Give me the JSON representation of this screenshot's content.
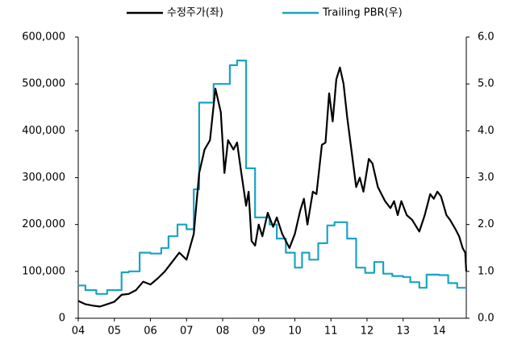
{
  "chart_data": {
    "type": "line",
    "xlim": [
      2004,
      2014.75
    ],
    "xticks": [
      {
        "value": 2004,
        "label": "04"
      },
      {
        "value": 2005,
        "label": "05"
      },
      {
        "value": 2006,
        "label": "06"
      },
      {
        "value": 2007,
        "label": "07"
      },
      {
        "value": 2008,
        "label": "08"
      },
      {
        "value": 2009,
        "label": "09"
      },
      {
        "value": 2010,
        "label": "10"
      },
      {
        "value": 2011,
        "label": "11"
      },
      {
        "value": 2012,
        "label": "12"
      },
      {
        "value": 2013,
        "label": "13"
      },
      {
        "value": 2014,
        "label": "14"
      }
    ],
    "ylim": [
      0,
      600000
    ],
    "yticks": [
      0,
      {
        "value": 100000,
        "label": "100,000"
      },
      {
        "value": 200000,
        "label": "200,000"
      },
      {
        "value": 300000,
        "label": "300,000"
      },
      {
        "value": 400000,
        "label": "400,000"
      },
      {
        "value": 500000,
        "label": "500,000"
      },
      {
        "value": 600000,
        "label": "600,000"
      }
    ],
    "y2lim": [
      0,
      6
    ],
    "y2ticks": [
      {
        "value": 0,
        "label": "0.0"
      },
      {
        "value": 1,
        "label": "1.0"
      },
      {
        "value": 2,
        "label": "2.0"
      },
      {
        "value": 3,
        "label": "3.0"
      },
      {
        "value": 4,
        "label": "4.0"
      },
      {
        "value": 5,
        "label": "5.0"
      },
      {
        "value": 6,
        "label": "6.0"
      }
    ],
    "legend": "top",
    "series": [
      {
        "name": "수정주가(좌)",
        "color": "#000000",
        "x": [
          2004.0,
          2004.2,
          2004.4,
          2004.6,
          2004.8,
          2005.0,
          2005.2,
          2005.4,
          2005.6,
          2005.8,
          2006.0,
          2006.2,
          2006.4,
          2006.6,
          2006.8,
          2007.0,
          2007.2,
          2007.35,
          2007.5,
          2007.65,
          2007.8,
          2007.95,
          2008.05,
          2008.15,
          2008.3,
          2008.4,
          2008.5,
          2008.65,
          2008.72,
          2008.8,
          2008.9,
          2009.0,
          2009.1,
          2009.25,
          2009.4,
          2009.5,
          2009.65,
          2009.85,
          2010.0,
          2010.15,
          2010.25,
          2010.35,
          2010.5,
          2010.6,
          2010.75,
          2010.85,
          2010.95,
          2011.05,
          2011.15,
          2011.25,
          2011.35,
          2011.45,
          2011.55,
          2011.7,
          2011.8,
          2011.9,
          2012.05,
          2012.15,
          2012.3,
          2012.5,
          2012.65,
          2012.75,
          2012.85,
          2012.95,
          2013.1,
          2013.25,
          2013.45,
          2013.6,
          2013.75,
          2013.85,
          2013.95,
          2014.05,
          2014.2,
          2014.3,
          2014.45,
          2014.55,
          2014.65,
          2014.72,
          2014.75
        ],
        "values": [
          37000,
          30000,
          27000,
          25000,
          30000,
          35000,
          50000,
          52000,
          60000,
          78000,
          72000,
          85000,
          100000,
          120000,
          140000,
          125000,
          180000,
          310000,
          360000,
          380000,
          490000,
          440000,
          310000,
          380000,
          360000,
          375000,
          320000,
          240000,
          270000,
          165000,
          155000,
          200000,
          175000,
          225000,
          195000,
          215000,
          180000,
          150000,
          180000,
          230000,
          255000,
          200000,
          270000,
          265000,
          370000,
          375000,
          480000,
          420000,
          510000,
          535000,
          500000,
          430000,
          370000,
          280000,
          300000,
          270000,
          340000,
          330000,
          280000,
          250000,
          235000,
          250000,
          220000,
          250000,
          220000,
          210000,
          185000,
          220000,
          265000,
          255000,
          270000,
          260000,
          220000,
          210000,
          190000,
          175000,
          150000,
          140000,
          100000
        ]
      },
      {
        "name": "Trailing PBR(우)",
        "color": "#1aa3c4",
        "axis": "y2",
        "x": [
          2004.0,
          2004.2,
          2004.2,
          2004.5,
          2004.5,
          2004.8,
          2004.8,
          2005.2,
          2005.2,
          2005.4,
          2005.4,
          2005.7,
          2005.7,
          2006.0,
          2006.0,
          2006.3,
          2006.3,
          2006.5,
          2006.5,
          2006.75,
          2006.75,
          2007.0,
          2007.0,
          2007.2,
          2007.2,
          2007.35,
          2007.35,
          2007.75,
          2007.75,
          2008.2,
          2008.2,
          2008.4,
          2008.4,
          2008.65,
          2008.65,
          2008.9,
          2008.9,
          2009.3,
          2009.3,
          2009.5,
          2009.5,
          2009.75,
          2009.75,
          2010.0,
          2010.0,
          2010.2,
          2010.2,
          2010.4,
          2010.4,
          2010.65,
          2010.65,
          2010.9,
          2010.9,
          2011.1,
          2011.1,
          2011.45,
          2011.45,
          2011.7,
          2011.7,
          2011.95,
          2011.95,
          2012.2,
          2012.2,
          2012.45,
          2012.45,
          2012.7,
          2012.7,
          2013.0,
          2013.0,
          2013.2,
          2013.2,
          2013.45,
          2013.45,
          2013.65,
          2013.65,
          2014.0,
          2014.0,
          2014.25,
          2014.25,
          2014.5,
          2014.5,
          2014.75
        ],
        "values": [
          0.7,
          0.7,
          0.6,
          0.6,
          0.52,
          0.52,
          0.6,
          0.6,
          0.98,
          0.98,
          1.0,
          1.0,
          1.4,
          1.4,
          1.38,
          1.38,
          1.5,
          1.5,
          1.75,
          1.75,
          2.0,
          2.0,
          1.9,
          1.9,
          2.75,
          2.75,
          4.6,
          4.6,
          5.0,
          5.0,
          5.4,
          5.4,
          5.5,
          5.5,
          3.2,
          3.2,
          2.15,
          2.15,
          2.0,
          2.0,
          1.7,
          1.7,
          1.4,
          1.4,
          1.08,
          1.08,
          1.4,
          1.4,
          1.25,
          1.25,
          1.6,
          1.6,
          1.98,
          1.98,
          2.05,
          2.05,
          1.7,
          1.7,
          1.08,
          1.08,
          0.97,
          0.97,
          1.2,
          1.2,
          0.95,
          0.95,
          0.9,
          0.9,
          0.88,
          0.88,
          0.77,
          0.77,
          0.65,
          0.65,
          0.93,
          0.93,
          0.92,
          0.92,
          0.75,
          0.75,
          0.65,
          0.65
        ]
      }
    ]
  }
}
